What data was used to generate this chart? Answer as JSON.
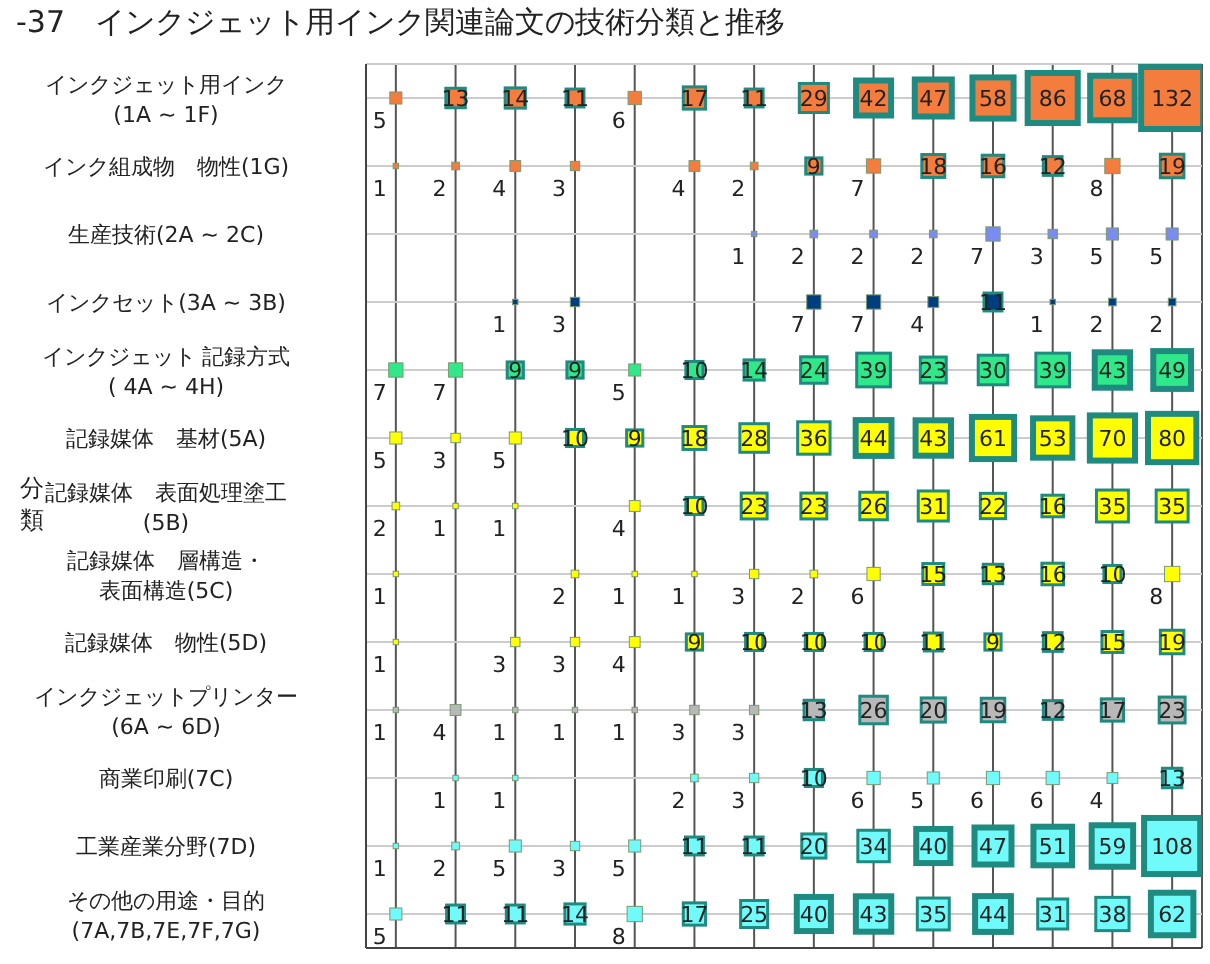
{
  "chart_data": {
    "type": "heatmap",
    "title": "-37　インクジェット用インク関連論文の技術分類と推移",
    "ylabel": "分類",
    "grid": true,
    "data_labels": true,
    "tick_labels": "y",
    "categories": [
      null,
      null,
      null,
      null,
      null,
      null,
      null,
      null,
      null,
      null,
      null,
      null,
      null,
      null
    ],
    "y_categories": [
      "インクジェット用インク\n(1A ~ 1F)",
      "インク組成物　物性(1G)",
      "生産技術(2A ~ 2C)",
      "インクセット(3A ~ 3B)",
      "インクジェット 記録方式\n( 4A ~ 4H)",
      "記録媒体　基材(5A)",
      "記録媒体　表面処理塗工\n(5B)",
      "記録媒体　層構造・表面構造(5C)",
      "記録媒体　物性(5D)",
      "インクジェットプリンター\n(6A ~ 6D)",
      "商業印刷(7C)",
      "工業産業分野(7D)",
      "その他の用途・目的\n(7A,7B,7E,7F,7G)"
    ],
    "colors": [
      "#f47c3c",
      "#f47c3c",
      "#7b8cf0",
      "#003f7f",
      "#2ee88a",
      "#ffff00",
      "#ffff00",
      "#ffff00",
      "#ffff00",
      "#b8b8b8",
      "#70fafa",
      "#70fafa",
      "#70fafa"
    ],
    "cells": [
      [
        5,
        13,
        14,
        11,
        6,
        17,
        11,
        29,
        42,
        47,
        58,
        86,
        68,
        132
      ],
      [
        1,
        2,
        4,
        3,
        null,
        4,
        2,
        9,
        7,
        18,
        16,
        12,
        8,
        19
      ],
      [
        null,
        null,
        null,
        null,
        null,
        null,
        1,
        2,
        2,
        2,
        7,
        3,
        5,
        5
      ],
      [
        null,
        null,
        1,
        3,
        null,
        null,
        null,
        7,
        7,
        4,
        11,
        1,
        2,
        2
      ],
      [
        7,
        7,
        9,
        9,
        5,
        10,
        14,
        24,
        39,
        23,
        30,
        39,
        43,
        49
      ],
      [
        5,
        3,
        5,
        10,
        9,
        18,
        28,
        36,
        44,
        43,
        61,
        53,
        70,
        80
      ],
      [
        2,
        1,
        1,
        null,
        4,
        10,
        23,
        23,
        26,
        31,
        22,
        16,
        35,
        35
      ],
      [
        1,
        null,
        null,
        2,
        1,
        1,
        3,
        2,
        6,
        15,
        13,
        16,
        10,
        8
      ],
      [
        1,
        null,
        3,
        3,
        4,
        9,
        10,
        10,
        10,
        11,
        9,
        12,
        15,
        19
      ],
      [
        1,
        4,
        1,
        1,
        1,
        3,
        3,
        13,
        26,
        20,
        19,
        12,
        17,
        23
      ],
      [
        null,
        1,
        1,
        null,
        null,
        2,
        3,
        10,
        6,
        5,
        6,
        6,
        4,
        13
      ],
      [
        1,
        2,
        5,
        3,
        5,
        11,
        11,
        20,
        34,
        40,
        47,
        51,
        59,
        108
      ],
      [
        5,
        11,
        11,
        14,
        8,
        17,
        25,
        40,
        43,
        35,
        44,
        31,
        38,
        62
      ]
    ]
  }
}
